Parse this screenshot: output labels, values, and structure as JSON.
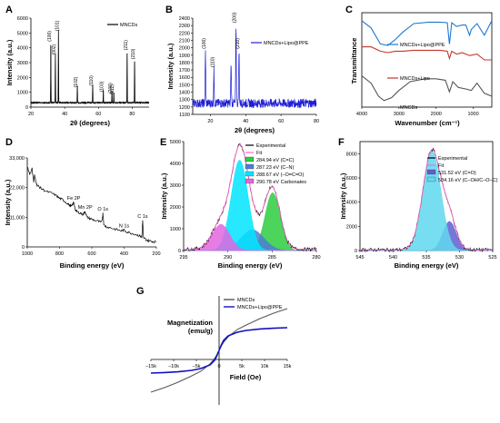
{
  "chart_data": [
    {
      "panel": "A",
      "type": "line",
      "xlabel": "2θ (degrees)",
      "ylabel": "Intensity (a.u.)",
      "xlim": [
        20,
        90
      ],
      "ylim": [
        0,
        6000
      ],
      "xticks": [
        20,
        40,
        60,
        80
      ],
      "yticks": [
        0,
        1000,
        2000,
        3000,
        4000,
        5000,
        6000
      ],
      "legend": "top-right",
      "series": [
        {
          "name": "MNCDs",
          "color": "#000000",
          "baseline": 300,
          "peaks": [
            {
              "x": 31.8,
              "y": 4600,
              "label": "(100)"
            },
            {
              "x": 34.5,
              "y": 3700,
              "label": "(002)"
            },
            {
              "x": 36.3,
              "y": 5300,
              "label": "(101)"
            },
            {
              "x": 47.5,
              "y": 1500,
              "label": "(102)"
            },
            {
              "x": 56.6,
              "y": 1600,
              "label": "(110)"
            },
            {
              "x": 62.9,
              "y": 1200,
              "label": "(103)"
            },
            {
              "x": 68.0,
              "y": 1100,
              "label": "(200)"
            },
            {
              "x": 69.1,
              "y": 1000,
              "label": "(112)"
            },
            {
              "x": 77.0,
              "y": 4000,
              "label": "(211)"
            },
            {
              "x": 81.4,
              "y": 3400,
              "label": "(210)"
            }
          ]
        }
      ]
    },
    {
      "panel": "B",
      "type": "line",
      "xlabel": "2θ (degrees)",
      "ylabel": "Intensity (a.u.)",
      "xlim": [
        10,
        80
      ],
      "ylim": [
        1100,
        2400
      ],
      "xticks": [
        20,
        40,
        60,
        80
      ],
      "yticks": [
        1100,
        1200,
        1300,
        1400,
        1500,
        1600,
        1700,
        1800,
        1900,
        2000,
        2100,
        2200,
        2300,
        2400
      ],
      "legend": "top-right",
      "series": [
        {
          "name": "MNCDs+Lipo@PPE",
          "color": "#1f1fd6",
          "baseline": 1250,
          "peaks": [
            {
              "x": 17.2,
              "y": 1950,
              "label": "(100)"
            },
            {
              "x": 22.0,
              "y": 1700,
              "label": "(110)"
            },
            {
              "x": 31.7,
              "y": 1800,
              "label": ""
            },
            {
              "x": 34.5,
              "y": 2300,
              "label": "(200)"
            },
            {
              "x": 36.2,
              "y": 1950,
              "label": "(210)"
            }
          ]
        }
      ]
    },
    {
      "panel": "C",
      "type": "line",
      "xlabel": "Wavenumber (cm⁻¹)",
      "ylabel": "Transmittance",
      "xlim": [
        4000,
        500
      ],
      "xticks": [
        4000,
        3000,
        2000,
        1000
      ],
      "series": [
        {
          "name": "MNCDs+Lipo@PPE",
          "color": "#1f77d0",
          "x": [
            4000,
            3750,
            3500,
            3300,
            3100,
            2900,
            2600,
            2200,
            1900,
            1700,
            1640,
            1580,
            1450,
            1300,
            1200,
            1100,
            1050,
            900,
            700,
            500
          ],
          "y": [
            2.85,
            2.6,
            2.05,
            2.0,
            2.2,
            2.45,
            2.75,
            2.8,
            2.8,
            2.78,
            2.05,
            2.78,
            2.65,
            2.7,
            2.7,
            2.35,
            2.55,
            2.75,
            2.35,
            2.85
          ]
        },
        {
          "name": "MNCDs+Lipo",
          "color": "#c0392b",
          "x": [
            4000,
            3750,
            3500,
            3300,
            3100,
            2900,
            2600,
            2200,
            1900,
            1700,
            1640,
            1580,
            1450,
            1300,
            1100,
            900,
            700,
            500
          ],
          "y": [
            1.95,
            1.95,
            1.8,
            1.75,
            1.8,
            1.8,
            1.83,
            1.83,
            1.83,
            1.8,
            1.55,
            1.8,
            1.7,
            1.75,
            1.65,
            1.7,
            1.5,
            1.5
          ]
        },
        {
          "name": "MNCDs",
          "color": "#555555",
          "x": [
            4000,
            3750,
            3550,
            3400,
            3200,
            3000,
            2700,
            2300,
            2000,
            1750,
            1640,
            1550,
            1400,
            1200,
            1050,
            900,
            700,
            500
          ],
          "y": [
            0.95,
            0.7,
            0.25,
            0.1,
            0.2,
            0.45,
            0.75,
            0.85,
            0.85,
            0.8,
            0.4,
            0.75,
            0.55,
            0.5,
            0.45,
            0.7,
            0.35,
            0.25
          ]
        }
      ]
    },
    {
      "panel": "D",
      "type": "line",
      "xlabel": "Binding energy (eV)",
      "ylabel": "Intensity (a.u.)",
      "xlim": [
        1000,
        200
      ],
      "ylim": [
        0,
        33000
      ],
      "xticks": [
        1000,
        800,
        600,
        400,
        200
      ],
      "yticks": [
        0,
        11000,
        22000,
        33000
      ],
      "yticklabels": [
        "0",
        "11,000",
        "22,000",
        "33,000"
      ],
      "annotations": [
        {
          "x": 712,
          "y": 16500,
          "text": "Fe 2P"
        },
        {
          "x": 641,
          "y": 13200,
          "text": "Mn 2P"
        },
        {
          "x": 531,
          "y": 12400,
          "text": "O 1s"
        },
        {
          "x": 400,
          "y": 6200,
          "text": "N 1s"
        },
        {
          "x": 285,
          "y": 9800,
          "text": "C 1s"
        }
      ],
      "series": [
        {
          "color": "#000000",
          "x": [
            1000,
            985,
            970,
            960,
            955,
            940,
            930,
            910,
            880,
            850,
            820,
            800,
            780,
            760,
            740,
            725,
            712,
            700,
            690,
            670,
            655,
            641,
            630,
            610,
            590,
            560,
            540,
            531,
            525,
            510,
            480,
            450,
            420,
            400,
            380,
            350,
            320,
            300,
            290,
            285,
            280,
            260,
            240,
            220,
            200
          ],
          "y": [
            30000,
            27000,
            29000,
            24000,
            26500,
            23000,
            22500,
            21500,
            20500,
            20000,
            19000,
            18000,
            17500,
            16500,
            15500,
            15000,
            16500,
            13500,
            13000,
            12500,
            12000,
            13200,
            11000,
            10500,
            10000,
            9500,
            9000,
            12400,
            8000,
            7500,
            7000,
            6500,
            6000,
            6200,
            5500,
            5000,
            4500,
            4000,
            3500,
            9800,
            3500,
            2500,
            2200,
            2000,
            1800
          ]
        }
      ]
    },
    {
      "panel": "E",
      "type": "area",
      "xlabel": "Binding energy (eV)",
      "ylabel": "Intensity (a.u.)",
      "xlim": [
        295,
        280
      ],
      "ylim": [
        0,
        5000
      ],
      "xticks": [
        295,
        290,
        285,
        280
      ],
      "yticks": [
        0,
        1000,
        2000,
        3000,
        4000,
        5000
      ],
      "legend": "top-right",
      "legend_extra": [
        {
          "name": "Experimental",
          "color": "#000000"
        },
        {
          "name": "Fit",
          "color": "#ff66cc"
        }
      ],
      "series": [
        {
          "name": "284.94 eV (C=C)",
          "color": "#2ecc40",
          "center": 284.94,
          "height": 2650,
          "sigma": 0.85
        },
        {
          "name": "287.23 eV (C–N)",
          "color": "#4a7fd4",
          "center": 287.23,
          "height": 950,
          "sigma": 1.3
        },
        {
          "name": "288.67 eV (–O=C=O)",
          "color": "#00e5ff",
          "center": 288.67,
          "height": 4150,
          "sigma": 0.95
        },
        {
          "name": "290.78 eV Carbonates",
          "color": "#e066e0",
          "center": 290.78,
          "height": 1200,
          "sigma": 1.0
        }
      ]
    },
    {
      "panel": "F",
      "type": "area",
      "xlabel": "Binding energy (eV)",
      "ylabel": "Intensity (a.u.)",
      "xlim": [
        545,
        525
      ],
      "ylim": [
        0,
        9000
      ],
      "xticks": [
        545,
        540,
        535,
        530,
        525
      ],
      "yticks": [
        0,
        2000,
        4000,
        6000,
        8000
      ],
      "legend": "top-right",
      "legend_extra": [
        {
          "name": "Experimental",
          "color": "#000000"
        },
        {
          "name": "Fit",
          "color": "#ff66cc"
        }
      ],
      "series": [
        {
          "name": "531.52 eV (C=O)",
          "color": "#5f5fd0",
          "center": 531.52,
          "height": 2400,
          "sigma": 1.0
        },
        {
          "name": "534.16 eV (C–OH/C–O–C)",
          "color": "#5fd8ee",
          "center": 534.16,
          "height": 8200,
          "sigma": 1.35
        }
      ]
    },
    {
      "panel": "G",
      "type": "line",
      "xlabel": "Field (Oe)",
      "ylabel": "Magnetization (emu/g)",
      "xlim": [
        -15000,
        15000
      ],
      "ylim": [
        -30,
        30
      ],
      "xticks": [
        -15000,
        -10000,
        -5000,
        0,
        5000,
        10000,
        15000
      ],
      "xticklabels": [
        "−15k",
        "−10k",
        "−5k",
        "0",
        "5k",
        "10k",
        "15k"
      ],
      "legend": "top-right",
      "series": [
        {
          "name": "MNCDs",
          "color": "#555555",
          "x": [
            -15000,
            -12000,
            -9000,
            -6000,
            -4000,
            -2000,
            -1000,
            -500,
            0,
            500,
            1000,
            2000,
            4000,
            6000,
            9000,
            12000,
            15000
          ],
          "y": [
            -23,
            -20.5,
            -17.5,
            -14,
            -11.5,
            -7.5,
            -4.5,
            -2.5,
            0,
            2.5,
            4.5,
            7.5,
            11.5,
            14,
            17.5,
            20.5,
            23
          ]
        },
        {
          "name": "MNCDs+Lipo@PPE",
          "color": "#1010c0",
          "x": [
            -15000,
            -12000,
            -9000,
            -6000,
            -4000,
            -2000,
            -1000,
            -500,
            0,
            500,
            1000,
            2000,
            4000,
            6000,
            9000,
            12000,
            15000
          ],
          "y": [
            -12.5,
            -12.2,
            -11.8,
            -11,
            -10,
            -8,
            -5.5,
            -3,
            0,
            3,
            5.5,
            8,
            10,
            11,
            11.8,
            12.2,
            12.5
          ]
        }
      ]
    }
  ]
}
